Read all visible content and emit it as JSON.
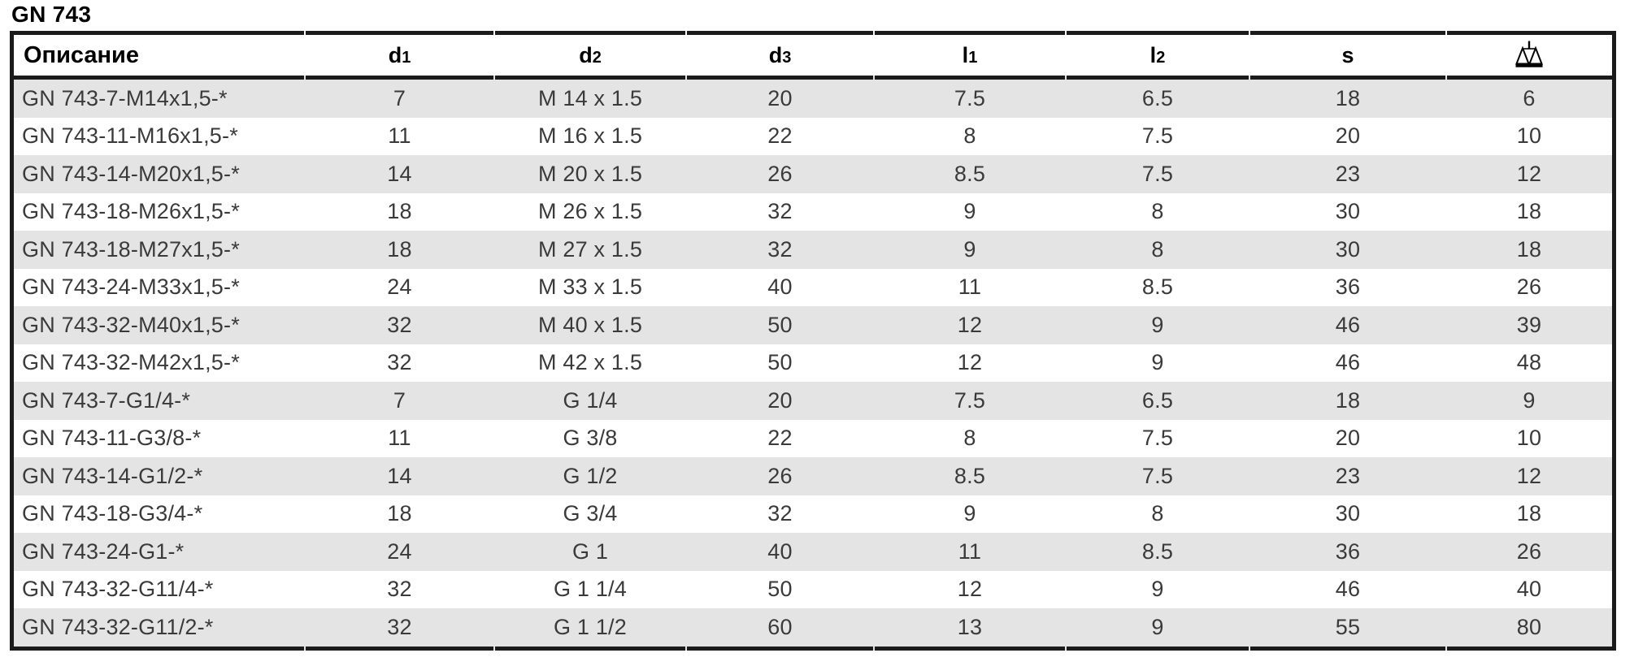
{
  "page_title": "GN 743",
  "table": {
    "columns": [
      {
        "key": "desc",
        "label": "Описание",
        "align": "left"
      },
      {
        "key": "d1",
        "label": "d",
        "sub": "1"
      },
      {
        "key": "d2",
        "label": "d",
        "sub": "2"
      },
      {
        "key": "d3",
        "label": "d",
        "sub": "3"
      },
      {
        "key": "l1",
        "label": "l",
        "sub": "1"
      },
      {
        "key": "l2",
        "label": "l",
        "sub": "2"
      },
      {
        "key": "s",
        "label": "s"
      },
      {
        "key": "weight",
        "label": "",
        "icon": "scales-icon"
      }
    ],
    "rows": [
      [
        "GN 743-7-M14x1,5-*",
        "7",
        "M 14 x 1.5",
        "20",
        "7.5",
        "6.5",
        "18",
        "6"
      ],
      [
        "GN 743-11-M16x1,5-*",
        "11",
        "M 16 x 1.5",
        "22",
        "8",
        "7.5",
        "20",
        "10"
      ],
      [
        "GN 743-14-M20x1,5-*",
        "14",
        "M 20 x 1.5",
        "26",
        "8.5",
        "7.5",
        "23",
        "12"
      ],
      [
        "GN 743-18-M26x1,5-*",
        "18",
        "M 26 x 1.5",
        "32",
        "9",
        "8",
        "30",
        "18"
      ],
      [
        "GN 743-18-M27x1,5-*",
        "18",
        "M 27 x 1.5",
        "32",
        "9",
        "8",
        "30",
        "18"
      ],
      [
        "GN 743-24-M33x1,5-*",
        "24",
        "M 33 x 1.5",
        "40",
        "11",
        "8.5",
        "36",
        "26"
      ],
      [
        "GN 743-32-M40x1,5-*",
        "32",
        "M 40 x 1.5",
        "50",
        "12",
        "9",
        "46",
        "39"
      ],
      [
        "GN 743-32-M42x1,5-*",
        "32",
        "M 42 x 1.5",
        "50",
        "12",
        "9",
        "46",
        "48"
      ],
      [
        "GN 743-7-G1/4-*",
        "7",
        "G 1/4",
        "20",
        "7.5",
        "6.5",
        "18",
        "9"
      ],
      [
        "GN 743-11-G3/8-*",
        "11",
        "G 3/8",
        "22",
        "8",
        "7.5",
        "20",
        "10"
      ],
      [
        "GN 743-14-G1/2-*",
        "14",
        "G 1/2",
        "26",
        "8.5",
        "7.5",
        "23",
        "12"
      ],
      [
        "GN 743-18-G3/4-*",
        "18",
        "G 3/4",
        "32",
        "9",
        "8",
        "30",
        "18"
      ],
      [
        "GN 743-24-G1-*",
        "24",
        "G 1",
        "40",
        "11",
        "8.5",
        "36",
        "26"
      ],
      [
        "GN 743-32-G11/4-*",
        "32",
        "G 1 1/4",
        "50",
        "12",
        "9",
        "46",
        "40"
      ],
      [
        "GN 743-32-G11/2-*",
        "32",
        "G 1 1/2",
        "60",
        "13",
        "9",
        "55",
        "80"
      ]
    ]
  },
  "colors": {
    "row_stripe": "#e4e4e4",
    "table_border": "#1b1b1b",
    "body_text": "#3a3a3a",
    "header_text": "#000000"
  }
}
